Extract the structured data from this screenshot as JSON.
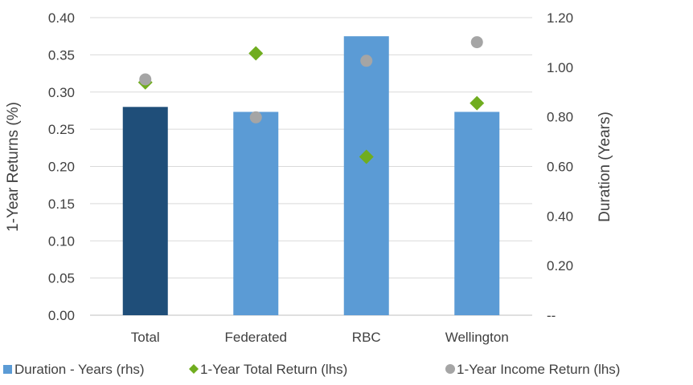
{
  "chart_data": {
    "type": "bar",
    "categories": [
      "Total",
      "Federated",
      "RBC",
      "Wellington"
    ],
    "series": [
      {
        "name": "Duration - Years (rhs)",
        "kind": "bar",
        "axis": "right",
        "values": [
          0.84,
          0.82,
          1.125,
          0.82
        ],
        "colors": [
          "#1f4e79",
          "#5b9bd5",
          "#5b9bd5",
          "#5b9bd5"
        ]
      },
      {
        "name": "1-Year Total Return (lhs)",
        "kind": "scatter",
        "marker": "diamond",
        "axis": "left",
        "values": [
          0.313,
          0.352,
          0.213,
          0.285
        ],
        "color": "#70ad1f"
      },
      {
        "name": "1-Year Income Return (lhs)",
        "kind": "scatter",
        "marker": "circle",
        "axis": "left",
        "values": [
          0.317,
          0.266,
          0.342,
          0.367
        ],
        "color": "#a5a5a5"
      }
    ],
    "ylabel": "1-Year  Returns (%)",
    "y2label": "Duration (Years)",
    "ylim": [
      0,
      0.4
    ],
    "y2lim": [
      0,
      1.2
    ],
    "yticks": [
      "0.00",
      "0.05",
      "0.10",
      "0.15",
      "0.20",
      "0.25",
      "0.30",
      "0.35",
      "0.40"
    ],
    "y2ticks": [
      "--",
      "0.20",
      "0.40",
      "0.60",
      "0.80",
      "1.00",
      "1.20"
    ],
    "grid": true,
    "legend_position": "bottom"
  }
}
